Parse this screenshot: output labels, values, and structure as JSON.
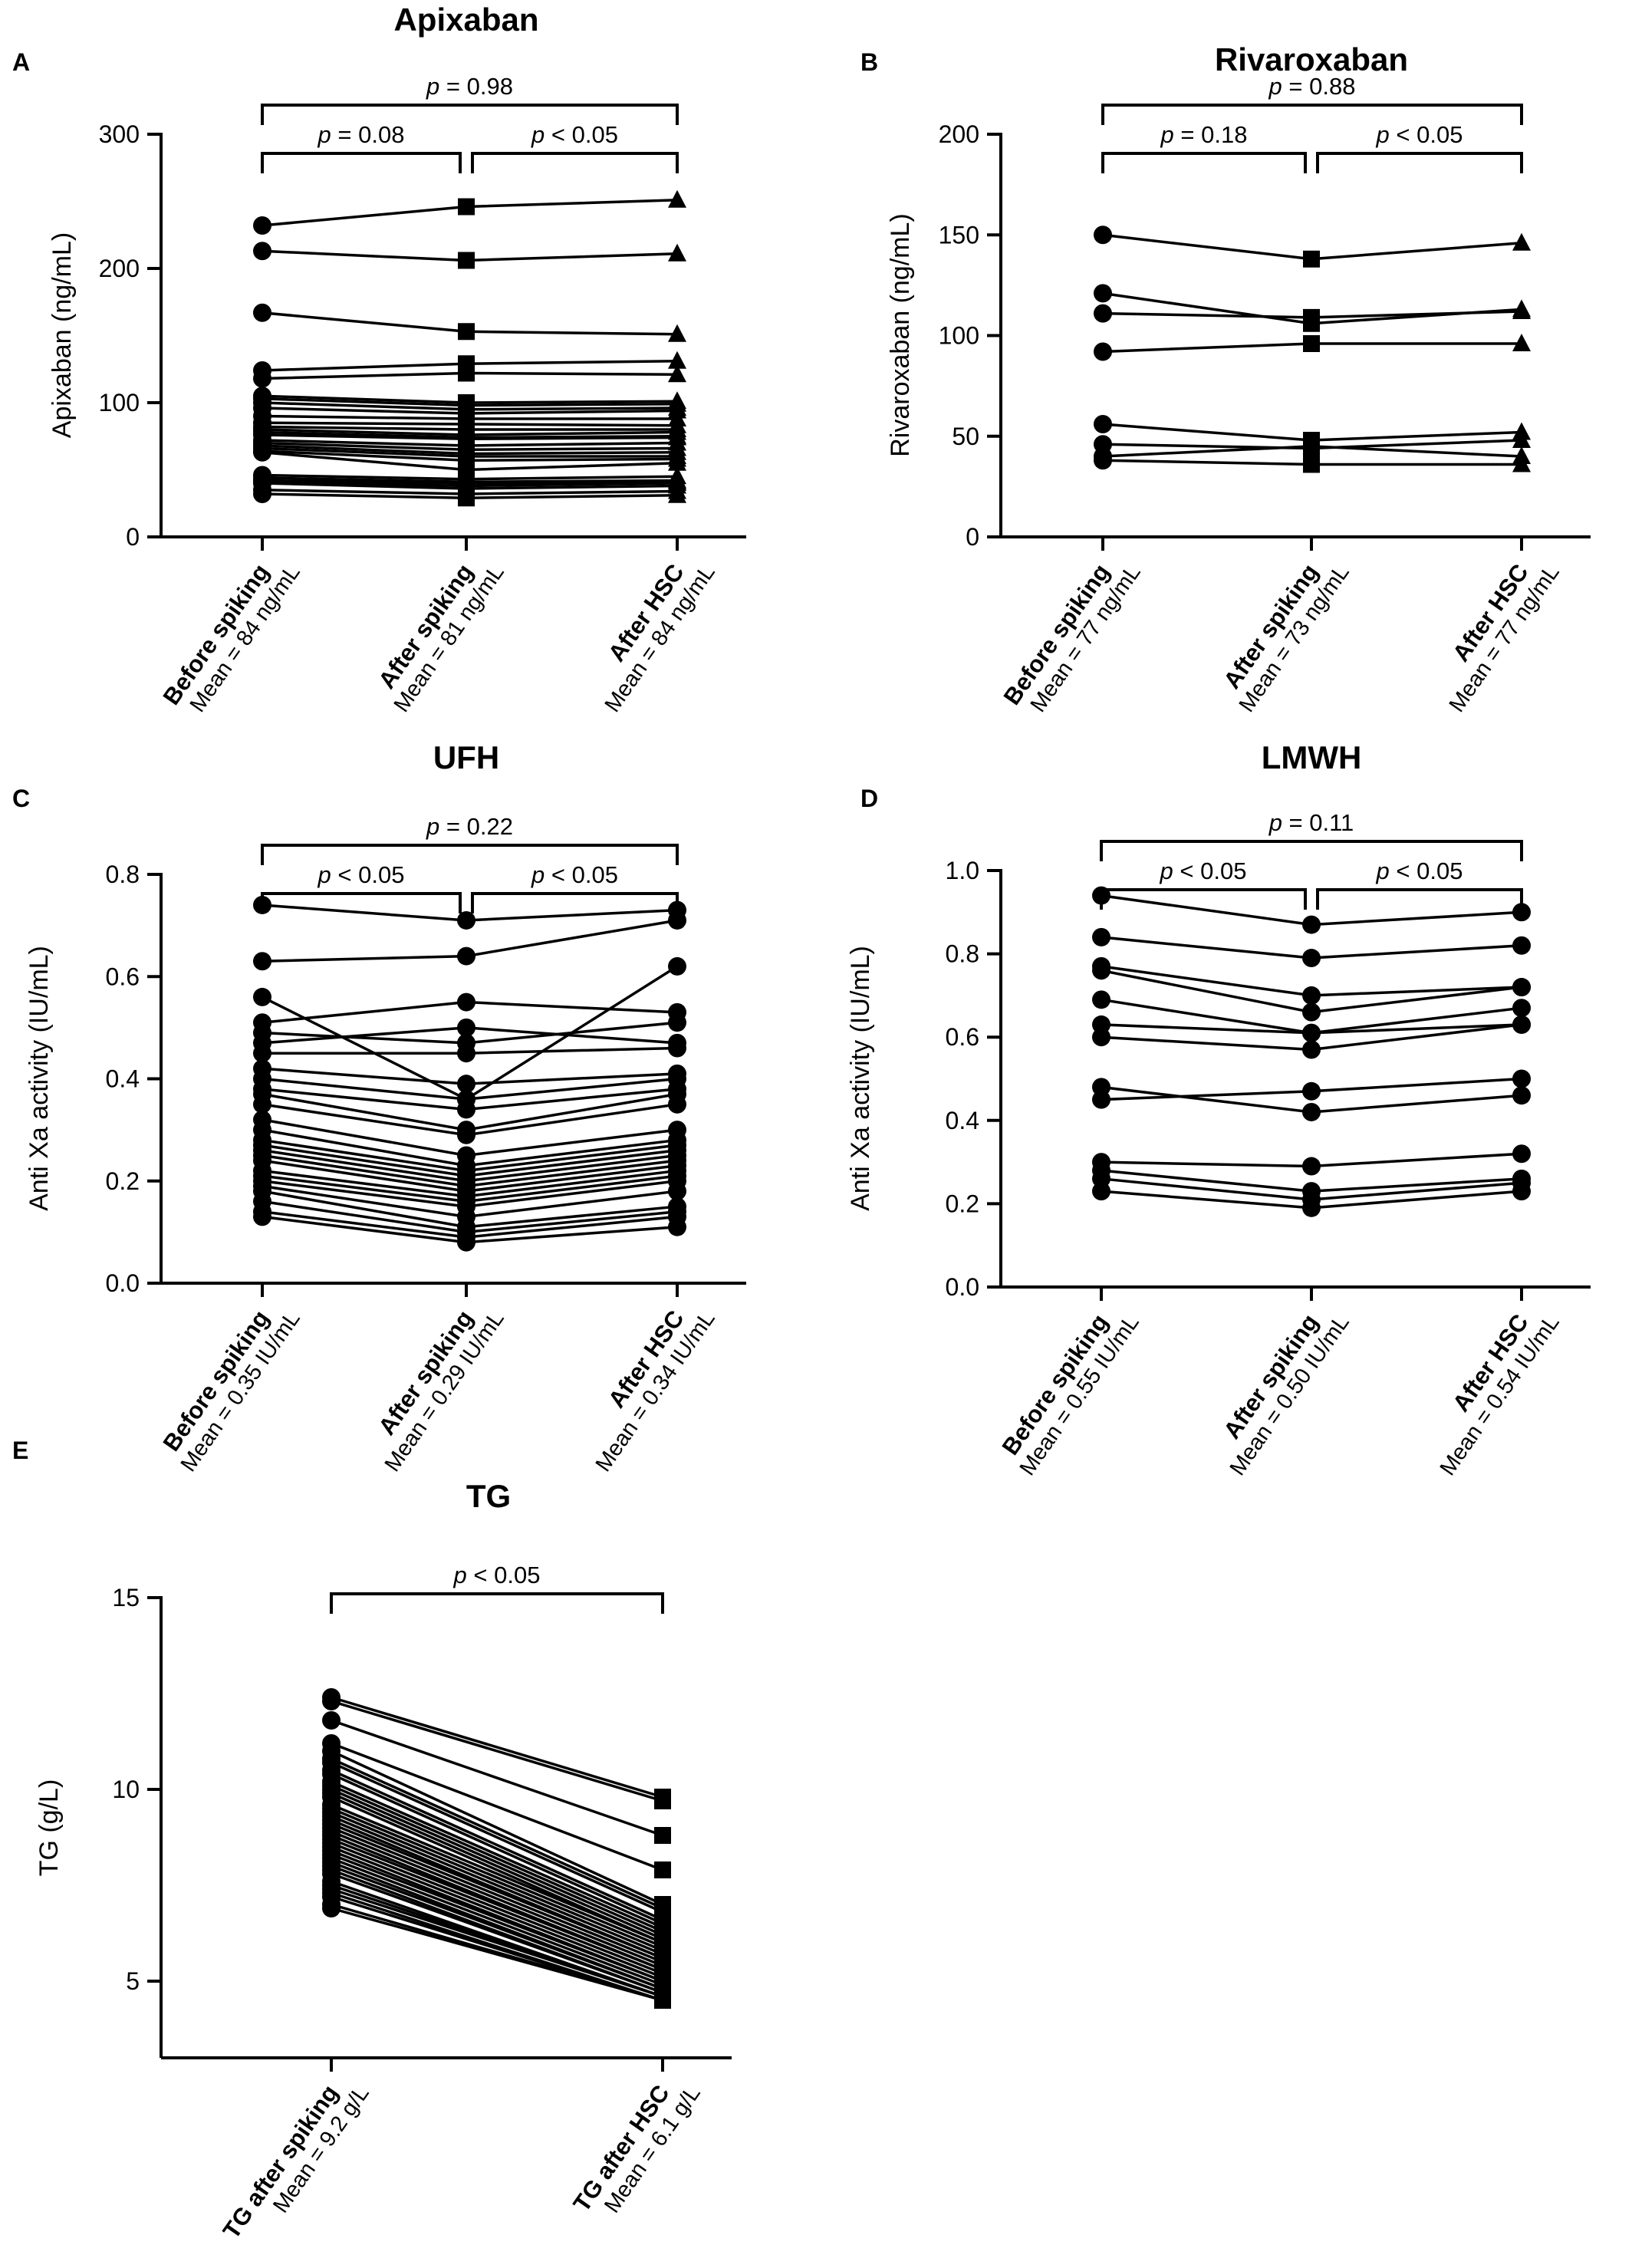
{
  "chart_data": [
    {
      "panel": "A",
      "type": "line",
      "title": "Apixaban",
      "ylabel": "Apixaban (ng/mL)",
      "ylim": [
        0,
        300
      ],
      "yticks": [
        0,
        100,
        200,
        300
      ],
      "categories": [
        {
          "label": "Before spiking",
          "mean": "Mean = 84 ng/mL"
        },
        {
          "label": "After spiking",
          "mean": "Mean = 81 ng/mL"
        },
        {
          "label": "After HSC",
          "mean": "Mean = 84 ng/mL"
        }
      ],
      "markers": [
        "circle",
        "square",
        "triangle"
      ],
      "comparisons": [
        {
          "from": 0,
          "to": 1,
          "level": 1,
          "p": "0.08",
          "op": "="
        },
        {
          "from": 1,
          "to": 2,
          "level": 1,
          "p": "0.05",
          "op": "<"
        },
        {
          "from": 0,
          "to": 2,
          "level": 2,
          "p": "0.98",
          "op": "="
        }
      ],
      "series": [
        [
          232,
          246,
          251
        ],
        [
          213,
          206,
          211
        ],
        [
          167,
          153,
          151
        ],
        [
          124,
          129,
          131
        ],
        [
          118,
          122,
          121
        ],
        [
          105,
          100,
          101
        ],
        [
          103,
          98,
          99
        ],
        [
          100,
          95,
          96
        ],
        [
          96,
          92,
          94
        ],
        [
          90,
          88,
          88
        ],
        [
          85,
          84,
          83
        ],
        [
          82,
          80,
          80
        ],
        [
          80,
          76,
          78
        ],
        [
          78,
          74,
          75
        ],
        [
          76,
          73,
          74
        ],
        [
          72,
          68,
          70
        ],
        [
          70,
          65,
          66
        ],
        [
          68,
          62,
          63
        ],
        [
          66,
          60,
          60
        ],
        [
          64,
          57,
          58
        ],
        [
          63,
          50,
          55
        ],
        [
          46,
          43,
          45
        ],
        [
          44,
          41,
          42
        ],
        [
          42,
          40,
          41
        ],
        [
          41,
          38,
          40
        ],
        [
          40,
          36,
          38
        ],
        [
          35,
          32,
          34
        ],
        [
          32,
          29,
          31
        ]
      ]
    },
    {
      "panel": "B",
      "type": "line",
      "title": "Rivaroxaban",
      "ylabel": "Rivaroxaban (ng/mL)",
      "ylim": [
        0,
        200
      ],
      "yticks": [
        0,
        50,
        100,
        150,
        200
      ],
      "categories": [
        {
          "label": "Before spiking",
          "mean": "Mean = 77 ng/mL"
        },
        {
          "label": "After spiking",
          "mean": "Mean = 73 ng/mL"
        },
        {
          "label": "After HSC",
          "mean": "Mean = 77 ng/mL"
        }
      ],
      "markers": [
        "circle",
        "square",
        "triangle"
      ],
      "comparisons": [
        {
          "from": 0,
          "to": 1,
          "level": 1,
          "p": "0.18",
          "op": "="
        },
        {
          "from": 1,
          "to": 2,
          "level": 1,
          "p": "0.05",
          "op": "<"
        },
        {
          "from": 0,
          "to": 2,
          "level": 2,
          "p": "0.88",
          "op": "="
        }
      ],
      "series": [
        [
          150,
          138,
          146
        ],
        [
          121,
          106,
          113
        ],
        [
          111,
          109,
          112
        ],
        [
          92,
          96,
          96
        ],
        [
          56,
          48,
          52
        ],
        [
          46,
          44,
          48
        ],
        [
          40,
          45,
          40
        ],
        [
          38,
          36,
          36
        ]
      ]
    },
    {
      "panel": "C",
      "type": "line",
      "title": "UFH",
      "ylabel": "Anti Xa activity (IU/mL)",
      "ylim": [
        0,
        0.8
      ],
      "yticks": [
        0.0,
        0.2,
        0.4,
        0.6,
        0.8
      ],
      "categories": [
        {
          "label": "Before spiking",
          "mean": "Mean = 0.35 IU/mL"
        },
        {
          "label": "After spiking",
          "mean": "Mean = 0.29 IU/mL"
        },
        {
          "label": "After HSC",
          "mean": "Mean = 0.34 IU/mL"
        }
      ],
      "markers": [
        "circle",
        "circle",
        "circle"
      ],
      "comparisons": [
        {
          "from": 0,
          "to": 1,
          "level": 1,
          "p": "0.05",
          "op": "<"
        },
        {
          "from": 1,
          "to": 2,
          "level": 1,
          "p": "0.05",
          "op": "<"
        },
        {
          "from": 0,
          "to": 2,
          "level": 2,
          "p": "0.22",
          "op": "="
        }
      ],
      "series": [
        [
          0.74,
          0.71,
          0.73
        ],
        [
          0.63,
          0.64,
          0.71
        ],
        [
          0.56,
          0.36,
          0.62
        ],
        [
          0.51,
          0.55,
          0.53
        ],
        [
          0.49,
          0.47,
          0.51
        ],
        [
          0.47,
          0.5,
          0.47
        ],
        [
          0.45,
          0.45,
          0.46
        ],
        [
          0.42,
          0.39,
          0.41
        ],
        [
          0.4,
          0.36,
          0.4
        ],
        [
          0.38,
          0.34,
          0.38
        ],
        [
          0.37,
          0.3,
          0.37
        ],
        [
          0.35,
          0.29,
          0.35
        ],
        [
          0.32,
          0.25,
          0.3
        ],
        [
          0.3,
          0.23,
          0.28
        ],
        [
          0.28,
          0.22,
          0.27
        ],
        [
          0.27,
          0.21,
          0.26
        ],
        [
          0.26,
          0.2,
          0.25
        ],
        [
          0.25,
          0.19,
          0.24
        ],
        [
          0.24,
          0.18,
          0.23
        ],
        [
          0.22,
          0.17,
          0.22
        ],
        [
          0.21,
          0.16,
          0.21
        ],
        [
          0.2,
          0.15,
          0.2
        ],
        [
          0.19,
          0.13,
          0.18
        ],
        [
          0.18,
          0.11,
          0.15
        ],
        [
          0.16,
          0.1,
          0.14
        ],
        [
          0.14,
          0.09,
          0.13
        ],
        [
          0.13,
          0.08,
          0.11
        ]
      ]
    },
    {
      "panel": "D",
      "type": "line",
      "title": "LMWH",
      "ylabel": "Anti Xa activity (IU/mL)",
      "ylim": [
        0,
        1.0
      ],
      "yticks": [
        0.0,
        0.2,
        0.4,
        0.6,
        0.8,
        1.0
      ],
      "categories": [
        {
          "label": "Before spiking",
          "mean": "Mean = 0.55 IU/mL"
        },
        {
          "label": "After spiking",
          "mean": "Mean = 0.50 IU/mL"
        },
        {
          "label": "After HSC",
          "mean": "Mean = 0.54 IU/mL"
        }
      ],
      "markers": [
        "circle",
        "circle",
        "circle"
      ],
      "comparisons": [
        {
          "from": 0,
          "to": 1,
          "level": 1,
          "p": "0.05",
          "op": "<"
        },
        {
          "from": 1,
          "to": 2,
          "level": 1,
          "p": "0.05",
          "op": "<"
        },
        {
          "from": 0,
          "to": 2,
          "level": 2,
          "p": "0.11",
          "op": "="
        }
      ],
      "series": [
        [
          0.94,
          0.87,
          0.9
        ],
        [
          0.84,
          0.79,
          0.82
        ],
        [
          0.77,
          0.7,
          0.72
        ],
        [
          0.76,
          0.66,
          0.72
        ],
        [
          0.69,
          0.61,
          0.67
        ],
        [
          0.63,
          0.61,
          0.63
        ],
        [
          0.6,
          0.57,
          0.63
        ],
        [
          0.48,
          0.42,
          0.46
        ],
        [
          0.45,
          0.47,
          0.5
        ],
        [
          0.3,
          0.29,
          0.32
        ],
        [
          0.28,
          0.23,
          0.26
        ],
        [
          0.26,
          0.21,
          0.25
        ],
        [
          0.23,
          0.19,
          0.23
        ]
      ]
    },
    {
      "panel": "E",
      "type": "line",
      "title": "TG",
      "ylabel": "TG (g/L)",
      "ylim": [
        3,
        15
      ],
      "yticks": [
        5,
        10,
        15
      ],
      "categories": [
        {
          "label": "TG after spiking",
          "mean": "Mean = 9.2 g/L"
        },
        {
          "label": "TG after HSC",
          "mean": "Mean = 6.1 g/L"
        }
      ],
      "markers": [
        "circle",
        "square"
      ],
      "comparisons": [
        {
          "from": 0,
          "to": 1,
          "level": 1,
          "p": "0.05",
          "op": "<"
        }
      ],
      "series": [
        [
          12.4,
          9.8
        ],
        [
          12.3,
          9.7
        ],
        [
          11.8,
          8.8
        ],
        [
          11.2,
          7.9
        ],
        [
          11.0,
          7.0
        ],
        [
          10.8,
          6.9
        ],
        [
          10.7,
          6.8
        ],
        [
          10.5,
          6.6
        ],
        [
          10.4,
          6.5
        ],
        [
          10.2,
          6.4
        ],
        [
          10.1,
          6.3
        ],
        [
          10.0,
          6.2
        ],
        [
          9.9,
          6.1
        ],
        [
          9.8,
          6.0
        ],
        [
          9.6,
          6.0
        ],
        [
          9.5,
          5.9
        ],
        [
          9.4,
          5.8
        ],
        [
          9.3,
          5.7
        ],
        [
          9.2,
          5.6
        ],
        [
          9.1,
          5.6
        ],
        [
          9.0,
          5.5
        ],
        [
          8.9,
          5.4
        ],
        [
          8.8,
          5.3
        ],
        [
          8.7,
          5.3
        ],
        [
          8.6,
          5.2
        ],
        [
          8.5,
          5.1
        ],
        [
          8.4,
          5.0
        ],
        [
          8.3,
          5.0
        ],
        [
          8.2,
          4.9
        ],
        [
          8.1,
          4.8
        ],
        [
          8.0,
          4.8
        ],
        [
          7.9,
          4.7
        ],
        [
          7.8,
          4.7
        ],
        [
          7.6,
          4.6
        ],
        [
          7.5,
          4.6
        ],
        [
          7.4,
          4.6
        ],
        [
          7.3,
          4.5
        ],
        [
          7.2,
          4.5
        ],
        [
          7.0,
          4.5
        ],
        [
          6.9,
          4.5
        ]
      ]
    }
  ]
}
